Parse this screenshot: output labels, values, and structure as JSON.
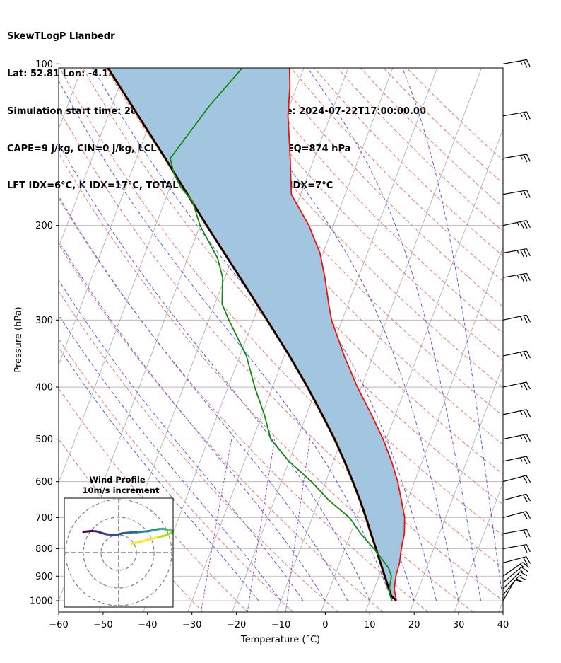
{
  "header": {
    "line1": "SkewTLogP Llanbedr",
    "line2": "Lat: 52.81   Lon: -4.12",
    "line3": "Simulation start time: 2024-07-20_00:00:00, Valid time: 2024-07-22T17:00:00.00",
    "line4": "CAPE=9 j/kg, CIN=0 j/kg, LCL=979 hPa, LFC=988 hPa, EQ=874 hPa",
    "line5": "LFT IDX=6°C, K IDX=17°C, TOTAL TOTS=40°C, SHWTR_IDX=7°C"
  },
  "chart_data": {
    "type": "skewt",
    "xlabel": "Temperature (°C)",
    "ylabel": "Pressure (hPa)",
    "xlim": [
      -60,
      40
    ],
    "ylim_hpa": [
      1050,
      100
    ],
    "x_ticks": [
      -60,
      -50,
      -40,
      -30,
      -20,
      -10,
      0,
      10,
      20,
      30,
      40
    ],
    "y_ticks": [
      1000,
      900,
      800,
      700,
      600,
      500,
      400,
      300,
      200,
      100
    ],
    "colors": {
      "temperature": "#e8120f",
      "dewpoint": "#128a12",
      "parcel": "#000000",
      "cape_fill": "#a3c6e0",
      "isotherms": "#aaaaaa",
      "dry_adiabats": "#f07070",
      "moist_adiabats": "#5a5af0",
      "mixing_ratio": "#9b4fc8"
    },
    "temperature": {
      "pressure": [
        1000,
        950,
        900,
        850,
        800,
        750,
        700,
        650,
        600,
        550,
        500,
        450,
        400,
        350,
        300,
        280,
        250,
        225,
        200,
        175,
        150,
        125,
        110,
        100
      ],
      "values": [
        16,
        14.5,
        13.8,
        13.5,
        12.7,
        12.1,
        10.8,
        8.6,
        6.2,
        3.1,
        -0.7,
        -5.4,
        -10.9,
        -16.5,
        -22.4,
        -24.4,
        -27.5,
        -30.7,
        -35.5,
        -42.1,
        -45.4,
        -49.5,
        -51.6,
        -53.6
      ]
    },
    "dewpoint": {
      "pressure": [
        1000,
        970,
        950,
        900,
        870,
        850,
        800,
        750,
        700,
        650,
        600,
        550,
        500,
        450,
        400,
        350,
        300,
        280,
        250,
        230,
        200,
        180,
        170,
        160,
        150,
        120,
        100
      ],
      "values": [
        15,
        13.8,
        13.4,
        12.8,
        11.5,
        10.2,
        6.5,
        2.3,
        -1.6,
        -7.7,
        -13.2,
        -20,
        -26,
        -29.5,
        -34,
        -38.5,
        -45.5,
        -48.4,
        -50.5,
        -53.3,
        -60,
        -63.8,
        -67.5,
        -70.3,
        -72.4,
        -68.1,
        -63.4
      ]
    },
    "parcel": {
      "pressure": [
        1000,
        979,
        950,
        900,
        850,
        800,
        750,
        700,
        650,
        600,
        550,
        500,
        450,
        400,
        350,
        300,
        250,
        200,
        150,
        100
      ],
      "values": [
        16,
        14.4,
        13.3,
        11.3,
        9.2,
        7,
        4.6,
        2.1,
        -0.7,
        -3.9,
        -7.5,
        -11.6,
        -16.5,
        -22.1,
        -28.8,
        -36.9,
        -46.6,
        -58.5,
        -73.5,
        -95
      ]
    },
    "wind_barbs": {
      "pressure": [
        1000,
        975,
        950,
        925,
        900,
        850,
        800,
        750,
        700,
        650,
        600,
        550,
        500,
        450,
        400,
        350,
        300,
        250,
        225,
        200,
        175,
        150,
        125,
        100
      ],
      "speed_kt": [
        12,
        14,
        15,
        16,
        17,
        19,
        20,
        20,
        21,
        22,
        22,
        25,
        25,
        25,
        25,
        25,
        26,
        35,
        35,
        35,
        25,
        25,
        25,
        25
      ],
      "direction_deg": [
        210,
        220,
        225,
        230,
        235,
        255,
        260,
        260,
        255,
        255,
        255,
        258,
        258,
        258,
        258,
        258,
        258,
        260,
        260,
        258,
        260,
        260,
        260,
        260
      ]
    },
    "inset": {
      "title": "Wind Profile",
      "subtitle": "10m/s increment",
      "hodograph_u": [
        3,
        5,
        7,
        9,
        11,
        12,
        12,
        11,
        10,
        9,
        8,
        7,
        6,
        5,
        4,
        3,
        1,
        -1,
        -3,
        -5,
        -6,
        -7,
        -8
      ],
      "hodograph_v": [
        2,
        2.5,
        3,
        3.5,
        4,
        4.5,
        5,
        5.2,
        5.4,
        5.3,
        5.1,
        4.9,
        4.8,
        4.7,
        4.6,
        4.6,
        4.4,
        3.9,
        4.2,
        4.8,
        4.9,
        4.8,
        4.7
      ]
    }
  }
}
